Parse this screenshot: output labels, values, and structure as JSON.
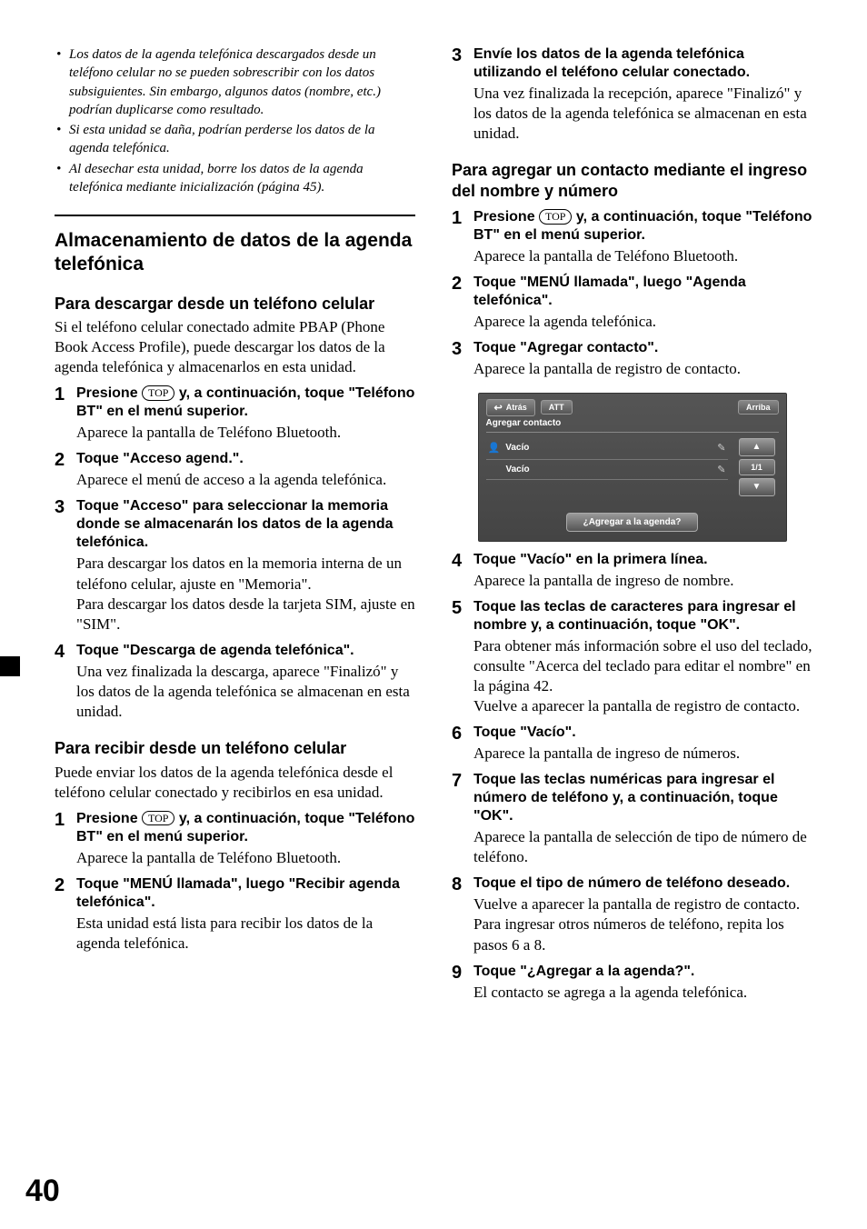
{
  "pageNumber": "40",
  "topButtonLabel": "TOP",
  "left": {
    "notes": [
      "Los datos de la agenda telefónica descargados desde un teléfono celular no se pueden sobrescribir con los datos subsiguientes. Sin embargo, algunos datos (nombre, etc.) podrían duplicarse como resultado.",
      "Si esta unidad se daña, podrían perderse los datos de la agenda telefónica.",
      "Al desechar esta unidad, borre los datos de la agenda telefónica mediante inicialización (página 45)."
    ],
    "sectionTitle": "Almacenamiento de datos de la agenda telefónica",
    "sub1": {
      "title": "Para descargar desde un teléfono celular",
      "intro": "Si el teléfono celular conectado admite PBAP (Phone Book Access Profile), puede descargar los datos de la agenda telefónica y almacenarlos en esta unidad.",
      "steps": [
        {
          "headPre": "Presione ",
          "headPost": " y, a continuación, toque \"Teléfono BT\" en el menú superior.",
          "desc": "Aparece la pantalla de Teléfono Bluetooth."
        },
        {
          "head": "Toque \"Acceso agend.\".",
          "desc": "Aparece el menú de acceso a la agenda telefónica."
        },
        {
          "head": "Toque \"Acceso\" para seleccionar la memoria donde se almacenarán los datos de la agenda telefónica.",
          "desc": "Para descargar los datos en la memoria interna de un teléfono celular, ajuste en \"Memoria\".\nPara descargar los datos desde la tarjeta SIM, ajuste en \"SIM\"."
        },
        {
          "head": "Toque \"Descarga de agenda telefónica\".",
          "desc": "Una vez finalizada la descarga, aparece \"Finalizó\" y los datos de la agenda telefónica se almacenan en esta unidad."
        }
      ]
    },
    "sub2": {
      "title": "Para recibir desde un teléfono celular",
      "intro": "Puede enviar los datos de la agenda telefónica desde el teléfono celular conectado y recibirlos en esa unidad.",
      "steps": [
        {
          "headPre": "Presione ",
          "headPost": " y, a continuación, toque \"Teléfono BT\" en el menú superior.",
          "desc": "Aparece la pantalla de Teléfono Bluetooth."
        },
        {
          "head": "Toque \"MENÚ llamada\", luego \"Recibir agenda telefónica\".",
          "desc": "Esta unidad está lista para recibir los datos de la agenda telefónica."
        }
      ]
    }
  },
  "right": {
    "step3": {
      "head": "Envíe los datos de la agenda telefónica utilizando el teléfono celular conectado.",
      "desc": "Una vez finalizada la recepción, aparece \"Finalizó\" y los datos de la agenda telefónica se almacenan en esta unidad."
    },
    "sub": {
      "title": "Para agregar un contacto mediante el ingreso del nombre y número",
      "steps": [
        {
          "n": "1",
          "headPre": "Presione ",
          "headPost": " y, a continuación, toque \"Teléfono BT\" en el menú superior.",
          "desc": "Aparece la pantalla de Teléfono Bluetooth."
        },
        {
          "n": "2",
          "head": "Toque \"MENÚ llamada\", luego \"Agenda telefónica\".",
          "desc": "Aparece la agenda telefónica."
        },
        {
          "n": "3",
          "head": "Toque \"Agregar contacto\".",
          "desc": "Aparece la pantalla de registro de contacto."
        },
        {
          "n": "4",
          "head": "Toque \"Vacío\" en la primera línea.",
          "desc": "Aparece la pantalla de ingreso de nombre."
        },
        {
          "n": "5",
          "head": "Toque las teclas de caracteres para ingresar el nombre y, a continuación, toque \"OK\".",
          "desc": "Para obtener más información sobre el uso del teclado, consulte \"Acerca del teclado para editar el nombre\" en la página 42.\nVuelve a aparecer la pantalla de registro de contacto."
        },
        {
          "n": "6",
          "head": "Toque \"Vacío\".",
          "desc": "Aparece la pantalla de ingreso de números."
        },
        {
          "n": "7",
          "head": "Toque las teclas numéricas para ingresar el número de teléfono y, a continuación, toque \"OK\".",
          "desc": "Aparece la pantalla de selección de tipo de número de teléfono."
        },
        {
          "n": "8",
          "head": "Toque el tipo de número de teléfono deseado.",
          "desc": "Vuelve a aparecer la pantalla de registro de contacto.\nPara ingresar otros números de teléfono, repita los pasos 6 a 8."
        },
        {
          "n": "9",
          "head": "Toque \"¿Agregar a la agenda?\".",
          "desc": "El contacto se agrega a la agenda telefónica."
        }
      ]
    }
  },
  "screenshot": {
    "back": "Atrás",
    "att": "ATT",
    "up": "Arriba",
    "title": "Agregar contacto",
    "row1": "Vacío",
    "row2": "Vacío",
    "navUp": "▲",
    "page": "1/1",
    "navDown": "▼",
    "addBtn": "¿Agregar a la agenda?"
  }
}
